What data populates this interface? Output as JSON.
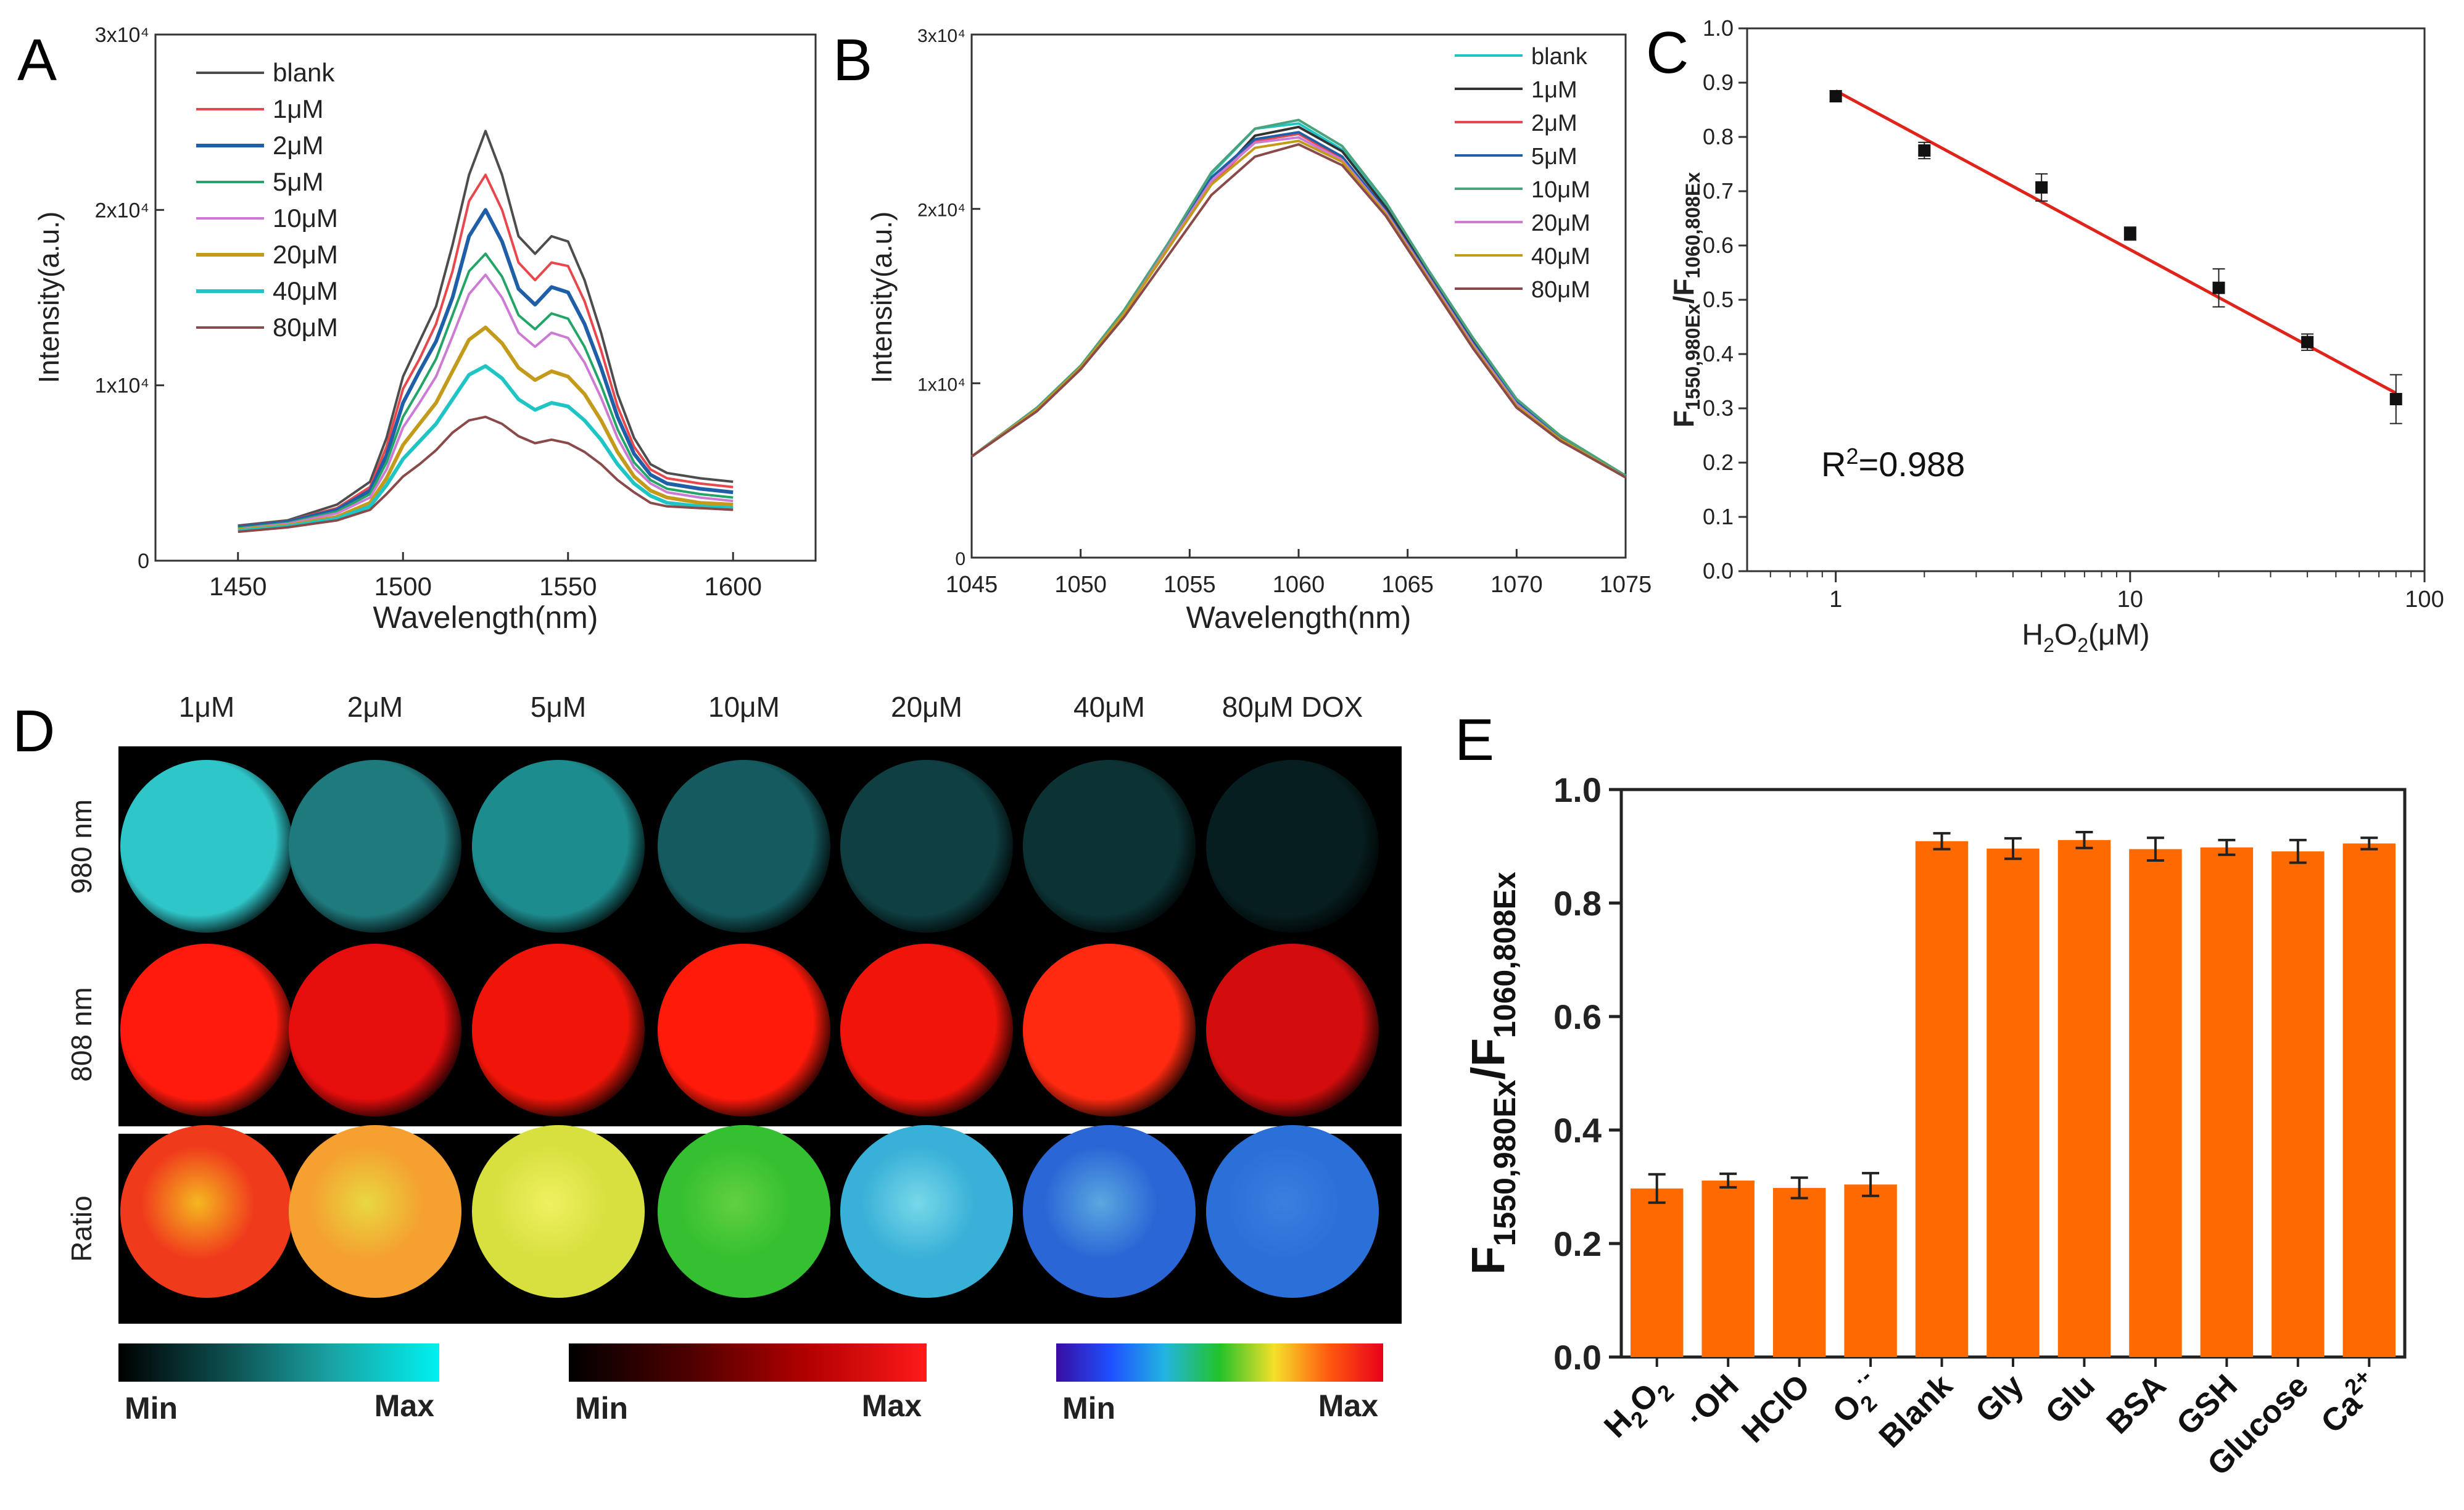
{
  "chart_data": [
    {
      "panel": "A",
      "type": "line",
      "title": "",
      "xlabel": "Wavelength(nm)",
      "ylabel": "Intensity(a.u.)",
      "xlim": [
        1425,
        1625
      ],
      "ylim": [
        0,
        30000
      ],
      "xticks": [
        1450,
        1500,
        1550,
        1600
      ],
      "yticks": [
        {
          "v": 0,
          "label": "0"
        },
        {
          "v": 10000,
          "label": "1x10⁴"
        },
        {
          "v": 20000,
          "label": "2x10⁴"
        },
        {
          "v": 30000,
          "label": "3x10⁴"
        }
      ],
      "legend_position": "top-left",
      "x": [
        1450,
        1465,
        1480,
        1490,
        1495,
        1500,
        1505,
        1510,
        1515,
        1520,
        1525,
        1530,
        1535,
        1540,
        1545,
        1550,
        1555,
        1560,
        1565,
        1570,
        1575,
        1580,
        1590,
        1600
      ],
      "series": [
        {
          "name": "blank",
          "color": "#4d4d4d",
          "width": 4,
          "values": [
            2000,
            2300,
            3200,
            4500,
            7000,
            10500,
            12500,
            14500,
            18000,
            22000,
            24500,
            22000,
            18500,
            17500,
            18500,
            18200,
            16000,
            13000,
            9500,
            7000,
            5500,
            5000,
            4700,
            4500
          ]
        },
        {
          "name": "1μM",
          "color": "#e8474c",
          "width": 4,
          "values": [
            1950,
            2250,
            3000,
            4200,
            6500,
            9800,
            11500,
            13500,
            16500,
            20500,
            22000,
            20000,
            17000,
            16000,
            17000,
            16800,
            14800,
            12000,
            8800,
            6500,
            5200,
            4700,
            4400,
            4200
          ]
        },
        {
          "name": "2μM",
          "color": "#1f5fa8",
          "width": 6,
          "values": [
            1900,
            2200,
            2900,
            4000,
            6000,
            9000,
            10800,
            12500,
            15000,
            18500,
            20000,
            18200,
            15500,
            14600,
            15600,
            15300,
            13500,
            11000,
            8200,
            6100,
            4900,
            4400,
            4100,
            3900
          ]
        },
        {
          "name": "5μM",
          "color": "#22a567",
          "width": 4,
          "values": [
            1850,
            2150,
            2800,
            3800,
            5600,
            8200,
            9800,
            11500,
            14000,
            16500,
            17500,
            16200,
            14000,
            13200,
            14100,
            13800,
            12200,
            10000,
            7500,
            5600,
            4600,
            4100,
            3800,
            3600
          ]
        },
        {
          "name": "10μM",
          "color": "#cc7ad4",
          "width": 4,
          "values": [
            1800,
            2100,
            2700,
            3600,
            5200,
            7600,
            9000,
            10500,
            12800,
            15200,
            16300,
            15000,
            13000,
            12200,
            13000,
            12700,
            11300,
            9300,
            7000,
            5300,
            4400,
            3900,
            3600,
            3400
          ]
        },
        {
          "name": "20μM",
          "color": "#c49a1a",
          "width": 6,
          "values": [
            1750,
            2000,
            2500,
            3300,
            4700,
            6600,
            7800,
            9000,
            10800,
            12600,
            13300,
            12400,
            11000,
            10300,
            10800,
            10500,
            9500,
            8000,
            6200,
            4800,
            4000,
            3600,
            3300,
            3200
          ]
        },
        {
          "name": "40μM",
          "color": "#1fc5c5",
          "width": 6,
          "values": [
            1700,
            1950,
            2400,
            3100,
            4300,
            5800,
            6800,
            7800,
            9200,
            10600,
            11100,
            10400,
            9200,
            8600,
            9000,
            8800,
            8000,
            6900,
            5500,
            4400,
            3700,
            3300,
            3100,
            3000
          ]
        },
        {
          "name": "80μM",
          "color": "#8a4a4a",
          "width": 4,
          "values": [
            1650,
            1900,
            2300,
            2900,
            3800,
            4800,
            5500,
            6300,
            7300,
            8000,
            8200,
            7800,
            7100,
            6700,
            6900,
            6700,
            6200,
            5500,
            4600,
            3900,
            3300,
            3100,
            3000,
            2900
          ]
        }
      ]
    },
    {
      "panel": "B",
      "type": "line",
      "title": "",
      "xlabel": "Wavelength(nm)",
      "ylabel": "Intensity(a.u.)",
      "xlim": [
        1045,
        1075
      ],
      "ylim": [
        0,
        30000
      ],
      "xticks": [
        1045,
        1050,
        1055,
        1060,
        1065,
        1070,
        1075
      ],
      "yticks": [
        {
          "v": 0,
          "label": "0"
        },
        {
          "v": 10000,
          "label": "1x10⁴"
        },
        {
          "v": 20000,
          "label": "2x10⁴"
        },
        {
          "v": 30000,
          "label": "3x10⁴"
        }
      ],
      "legend_position": "top-right",
      "x": [
        1045,
        1048,
        1050,
        1052,
        1054,
        1056,
        1058,
        1060,
        1062,
        1064,
        1066,
        1068,
        1070,
        1072,
        1075
      ],
      "series": [
        {
          "name": "blank",
          "color": "#1fc5c5",
          "width": 4,
          "values": [
            5800,
            8600,
            11000,
            14200,
            18000,
            22000,
            24600,
            24900,
            23400,
            20200,
            16300,
            12500,
            9000,
            7000,
            4700
          ]
        },
        {
          "name": "1μM",
          "color": "#333333",
          "width": 4,
          "values": [
            5800,
            8500,
            10900,
            14000,
            17700,
            21500,
            24200,
            24700,
            23300,
            20100,
            16200,
            12400,
            8900,
            6900,
            4600
          ]
        },
        {
          "name": "2μM",
          "color": "#e8474c",
          "width": 4,
          "values": [
            5800,
            8500,
            10900,
            14000,
            17700,
            21400,
            23900,
            24300,
            22900,
            19800,
            16000,
            12200,
            8800,
            6800,
            4600
          ]
        },
        {
          "name": "5μM",
          "color": "#1f5fa8",
          "width": 4,
          "values": [
            5800,
            8600,
            11000,
            14100,
            17900,
            21800,
            24000,
            24400,
            23000,
            19900,
            16100,
            12300,
            8900,
            6900,
            4700
          ]
        },
        {
          "name": "10μM",
          "color": "#4aa37c",
          "width": 4,
          "values": [
            5800,
            8600,
            11000,
            14200,
            18000,
            22100,
            24600,
            25100,
            23600,
            20400,
            16400,
            12600,
            9100,
            7000,
            4700
          ]
        },
        {
          "name": "20μM",
          "color": "#cc7ad4",
          "width": 4,
          "values": [
            5800,
            8500,
            10900,
            14000,
            17800,
            21600,
            23800,
            24100,
            22800,
            19800,
            16000,
            12200,
            8800,
            6800,
            4600
          ]
        },
        {
          "name": "40μM",
          "color": "#c49a1a",
          "width": 4,
          "values": [
            5800,
            8500,
            10900,
            14000,
            17700,
            21400,
            23500,
            23900,
            22700,
            19700,
            15900,
            12100,
            8700,
            6800,
            4600
          ]
        },
        {
          "name": "80μM",
          "color": "#8a4a4a",
          "width": 4,
          "values": [
            5800,
            8400,
            10800,
            13800,
            17300,
            20800,
            23000,
            23700,
            22500,
            19600,
            15800,
            12000,
            8600,
            6700,
            4600
          ]
        }
      ]
    },
    {
      "panel": "C",
      "type": "scatter",
      "title": "",
      "xlabel_main": "H",
      "xlabel_sub1": "2",
      "xlabel_mid": "O",
      "xlabel_sub2": "2",
      "xlabel_tail": "(μM)",
      "ylabel_main": "F",
      "ylabel_sub1": "1550,980Ex",
      "ylabel_mid": "/F",
      "ylabel_sub2": "1060,808Ex",
      "xscale": "log",
      "xlim": [
        0.5,
        100
      ],
      "ylim": [
        0,
        1.0
      ],
      "xticks": [
        {
          "v": 1,
          "label": "1"
        },
        {
          "v": 10,
          "label": "10"
        },
        {
          "v": 100,
          "label": "100"
        }
      ],
      "yticks": [
        {
          "v": 0.0,
          "label": "0.0"
        },
        {
          "v": 0.1,
          "label": "0.1"
        },
        {
          "v": 0.2,
          "label": "0.2"
        },
        {
          "v": 0.3,
          "label": "0.3"
        },
        {
          "v": 0.4,
          "label": "0.4"
        },
        {
          "v": 0.5,
          "label": "0.5"
        },
        {
          "v": 0.6,
          "label": "0.6"
        },
        {
          "v": 0.7,
          "label": "0.7"
        },
        {
          "v": 0.8,
          "label": "0.8"
        },
        {
          "v": 0.9,
          "label": "0.9"
        },
        {
          "v": 1.0,
          "label": "1.0"
        }
      ],
      "points": [
        {
          "x": 1,
          "y": 0.875,
          "err": 0.01
        },
        {
          "x": 2,
          "y": 0.775,
          "err": 0.015
        },
        {
          "x": 5,
          "y": 0.707,
          "err": 0.025
        },
        {
          "x": 10,
          "y": 0.622,
          "err": 0.012
        },
        {
          "x": 20,
          "y": 0.522,
          "err": 0.035
        },
        {
          "x": 40,
          "y": 0.422,
          "err": 0.015
        },
        {
          "x": 80,
          "y": 0.317,
          "err": 0.045
        }
      ],
      "fit": {
        "x": [
          1,
          80
        ],
        "y": [
          0.885,
          0.328
        ],
        "color": "#e0241b"
      },
      "annotation_r": "R",
      "annotation_sup": "2",
      "annotation_val": "=0.988"
    },
    {
      "panel": "E",
      "type": "bar",
      "title": "",
      "xlabel": "",
      "ylabel_main": "F",
      "ylabel_sub1": "1550,980Ex",
      "ylabel_mid": "/F",
      "ylabel_sub2": "1060,808Ex",
      "ylim": [
        0,
        1.0
      ],
      "yticks": [
        {
          "v": 0.0,
          "label": "0.0"
        },
        {
          "v": 0.2,
          "label": "0.2"
        },
        {
          "v": 0.4,
          "label": "0.4"
        },
        {
          "v": 0.6,
          "label": "0.6"
        },
        {
          "v": 0.8,
          "label": "0.8"
        },
        {
          "v": 1.0,
          "label": "1.0"
        }
      ],
      "bar_color": "#ff6a00",
      "categories": [
        {
          "base": "H",
          "sub1": "2",
          "mid": "O",
          "sub2": "2",
          "sup": ""
        },
        {
          "base": "·OH",
          "sub1": "",
          "mid": "",
          "sub2": "",
          "sup": ""
        },
        {
          "base": "HClO",
          "sub1": "",
          "mid": "",
          "sub2": "",
          "sup": ""
        },
        {
          "base": "O",
          "sub1": "2",
          "mid": "",
          "sub2": "",
          "sup": "·-"
        },
        {
          "base": "Blank",
          "sub1": "",
          "mid": "",
          "sub2": "",
          "sup": ""
        },
        {
          "base": "Gly",
          "sub1": "",
          "mid": "",
          "sub2": "",
          "sup": ""
        },
        {
          "base": "Glu",
          "sub1": "",
          "mid": "",
          "sub2": "",
          "sup": ""
        },
        {
          "base": "BSA",
          "sub1": "",
          "mid": "",
          "sub2": "",
          "sup": ""
        },
        {
          "base": "GSH",
          "sub1": "",
          "mid": "",
          "sub2": "",
          "sup": ""
        },
        {
          "base": "Glucose",
          "sub1": "",
          "mid": "",
          "sub2": "",
          "sup": ""
        },
        {
          "base": "Ca",
          "sub1": "",
          "mid": "",
          "sub2": "",
          "sup": "2+"
        }
      ],
      "values": [
        0.297,
        0.311,
        0.298,
        0.304,
        0.909,
        0.896,
        0.911,
        0.895,
        0.898,
        0.891,
        0.905
      ],
      "errors": [
        0.025,
        0.012,
        0.018,
        0.02,
        0.014,
        0.018,
        0.014,
        0.02,
        0.013,
        0.02,
        0.01
      ]
    }
  ],
  "panel_labels": {
    "A": "A",
    "B": "B",
    "C": "C",
    "D": "D",
    "E": "E"
  },
  "panel_d": {
    "columns": [
      "1μM",
      "2μM",
      "5μM",
      "10μM",
      "20μM",
      "40μM",
      "80μM DOX"
    ],
    "rows": [
      "980 nm",
      "808 nm",
      "Ratio"
    ],
    "colorbars": [
      {
        "min": "Min",
        "max": "Max",
        "stops": [
          "#000000",
          "#0d4d4d",
          "#1aa3a3",
          "#00f0f0"
        ]
      },
      {
        "min": "Min",
        "max": "Max",
        "stops": [
          "#000000",
          "#4d0000",
          "#b30000",
          "#ff1a1a"
        ]
      },
      {
        "min": "Min",
        "max": "Max",
        "stops": [
          "#3a0ca3",
          "#1e50ff",
          "#22b5e0",
          "#22c22a",
          "#f5e02a",
          "#ff5a10",
          "#e8001a"
        ]
      }
    ],
    "row_980_colors": [
      "#2fc6c9",
      "#1f7a7e",
      "#1d8c8e",
      "#145a5e",
      "#0f3f42",
      "#0c3234",
      "#071e20"
    ],
    "row_808_colors": [
      "#ff1a0d",
      "#e60d0d",
      "#f01508",
      "#ff1a0a",
      "#f0140a",
      "#ff2a10",
      "#d30d0d"
    ],
    "row_ratio_colors": [
      "#f03a1c",
      "#f5a030",
      "#d8e040",
      "#34c030",
      "#38b0d8",
      "#2a66d6",
      "#2a70d8"
    ],
    "row_ratio_accents": [
      "#f5b820",
      "#e8d840",
      "#f0f060",
      "#62d040",
      "#78d8e8",
      "#5aa8e0",
      "#3a80e0"
    ]
  }
}
